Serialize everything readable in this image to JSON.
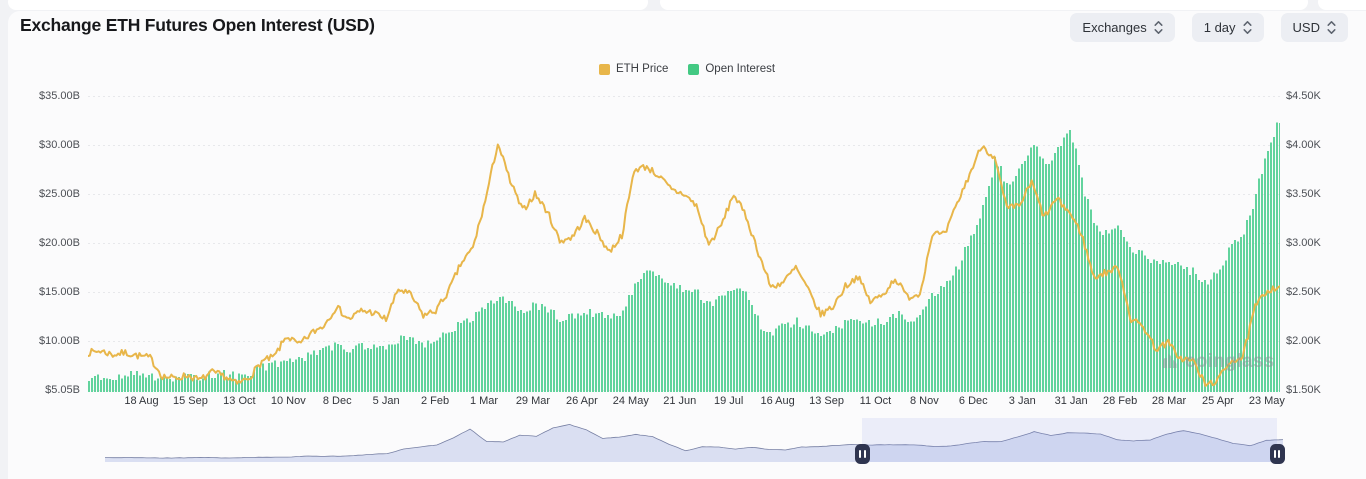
{
  "header": {
    "title": "Exchange ETH Futures Open Interest (USD)",
    "filters": [
      {
        "label": "Exchanges"
      },
      {
        "label": "1 day"
      },
      {
        "label": "USD"
      }
    ]
  },
  "legend": [
    {
      "label": "ETH Price",
      "color": "#E8B64A"
    },
    {
      "label": "Open Interest",
      "color": "#43C983"
    }
  ],
  "watermark": "coinglass",
  "colors": {
    "price_line": "#E8B64A",
    "oi_bar": "#56D096",
    "grid": "#E7E8EB",
    "nav_fill": "#DADFF2",
    "nav_stroke": "#767FA3",
    "nav_selection": "rgba(130,146,230,0.13)"
  },
  "chart_data": {
    "type": "mixed",
    "title": "Exchange ETH Futures Open Interest (USD)",
    "grid": "dotted-horizontal",
    "legend_position": "top-center",
    "x_tick_labels": [
      "18 Aug",
      "15 Sep",
      "13 Oct",
      "10 Nov",
      "8 Dec",
      "5 Jan",
      "2 Feb",
      "1 Mar",
      "29 Mar",
      "26 Apr",
      "24 May",
      "21 Jun",
      "19 Jul",
      "16 Aug",
      "13 Sep",
      "11 Oct",
      "8 Nov",
      "6 Dec",
      "3 Jan",
      "31 Jan",
      "28 Feb",
      "28 Mar",
      "25 Apr",
      "23 May"
    ],
    "left_axis": {
      "tick_labels": [
        "$35.00B",
        "$30.00B",
        "$25.00B",
        "$20.00B",
        "$15.00B",
        "$10.00B",
        "$5.05B"
      ],
      "min": 5.05,
      "max": 35,
      "unit": "USD billions"
    },
    "right_axis": {
      "tick_labels": [
        "$4.50K",
        "$4.00K",
        "$3.50K",
        "$3.00K",
        "$2.50K",
        "$2.00K",
        "$1.50K"
      ],
      "min": 1.5,
      "max": 4.5,
      "unit": "USD thousands"
    },
    "resolution": "weekly samples spanning the visible range",
    "series": [
      {
        "name": "ETH Price",
        "type": "line",
        "axis": "right",
        "color": "#E8B64A",
        "values": [
          1.88,
          1.9,
          1.86,
          1.88,
          1.85,
          1.83,
          1.64,
          1.62,
          1.65,
          1.6,
          1.68,
          1.64,
          1.56,
          1.63,
          1.79,
          1.84,
          2.05,
          1.96,
          2.08,
          2.16,
          2.35,
          2.22,
          2.31,
          2.29,
          2.22,
          2.53,
          2.47,
          2.26,
          2.31,
          2.5,
          2.78,
          2.95,
          3.43,
          4.02,
          3.63,
          3.33,
          3.5,
          3.32,
          3.02,
          3.06,
          3.25,
          3.1,
          2.91,
          3.08,
          3.75,
          3.78,
          3.68,
          3.54,
          3.5,
          3.38,
          2.98,
          3.18,
          3.5,
          3.27,
          2.9,
          2.55,
          2.6,
          2.75,
          2.52,
          2.27,
          2.35,
          2.56,
          2.66,
          2.4,
          2.47,
          2.64,
          2.45,
          2.48,
          3.1,
          3.08,
          3.4,
          3.7,
          4.0,
          3.87,
          3.35,
          3.38,
          3.62,
          3.26,
          3.45,
          3.32,
          3.1,
          2.65,
          2.7,
          2.75,
          2.22,
          2.15,
          1.92,
          1.98,
          1.82,
          1.8,
          1.55,
          1.6,
          1.8,
          1.83,
          2.35,
          2.52,
          2.56
        ]
      },
      {
        "name": "Open Interest",
        "type": "bar",
        "axis": "left",
        "color": "#56D096",
        "values": [
          6.2,
          6.4,
          6.3,
          6.5,
          6.6,
          6.4,
          6.1,
          6.3,
          6.5,
          6.4,
          6.7,
          6.6,
          6.5,
          6.9,
          7.4,
          7.6,
          8.3,
          8.1,
          8.7,
          9.0,
          9.6,
          9.2,
          9.4,
          9.7,
          9.5,
          10.3,
          10.1,
          9.8,
          10.2,
          10.9,
          11.8,
          12.6,
          13.8,
          14.6,
          13.9,
          13.2,
          13.8,
          13.1,
          12.3,
          12.5,
          13.0,
          12.7,
          12.4,
          13.2,
          15.9,
          17.2,
          16.2,
          15.7,
          15.4,
          14.9,
          13.8,
          14.4,
          15.3,
          14.6,
          11.8,
          10.9,
          11.5,
          12.0,
          11.4,
          10.8,
          11.2,
          11.9,
          12.3,
          11.7,
          12.1,
          12.8,
          12.3,
          12.6,
          14.8,
          15.6,
          17.5,
          20.5,
          23.5,
          28.5,
          26.0,
          27.5,
          30.5,
          28.0,
          29.5,
          31.5,
          26.5,
          22.0,
          21.0,
          21.5,
          19.5,
          19.0,
          18.0,
          18.5,
          17.5,
          17.0,
          16.0,
          17.0,
          19.5,
          21.0,
          25.0,
          29.5,
          33.0
        ]
      }
    ]
  },
  "navigator": {
    "type": "area",
    "values": [
      0.19,
      0.17,
      0.18,
      0.15,
      0.13,
      0.17,
      0.22,
      0.13,
      0.17,
      0.21,
      0.23,
      0.24,
      0.39,
      0.35,
      0.38,
      0.45,
      0.6,
      0.73,
      1.3,
      1.6,
      1.85,
      2.8,
      3.95,
      2.3,
      2.25,
      3.15,
      3.0,
      4.1,
      4.55,
      3.85,
      2.7,
      2.9,
      3.25,
      2.95,
      1.95,
      1.1,
      1.6,
      1.58,
      1.32,
      1.55,
      1.25,
      1.2,
      1.58,
      1.62,
      1.78,
      1.9,
      1.85,
      1.88,
      1.87,
      1.85,
      1.63,
      1.72,
      2.05,
      2.3,
      2.3,
      2.9,
      3.6,
      3.1,
      3.45,
      3.45,
      3.3,
      2.55,
      2.4,
      2.5,
      3.3,
      3.75,
      3.3,
      2.7,
      2.05,
      1.75,
      2.45,
      2.56
    ],
    "selection": {
      "start_pct": 64.3,
      "end_pct": 99.5
    }
  }
}
